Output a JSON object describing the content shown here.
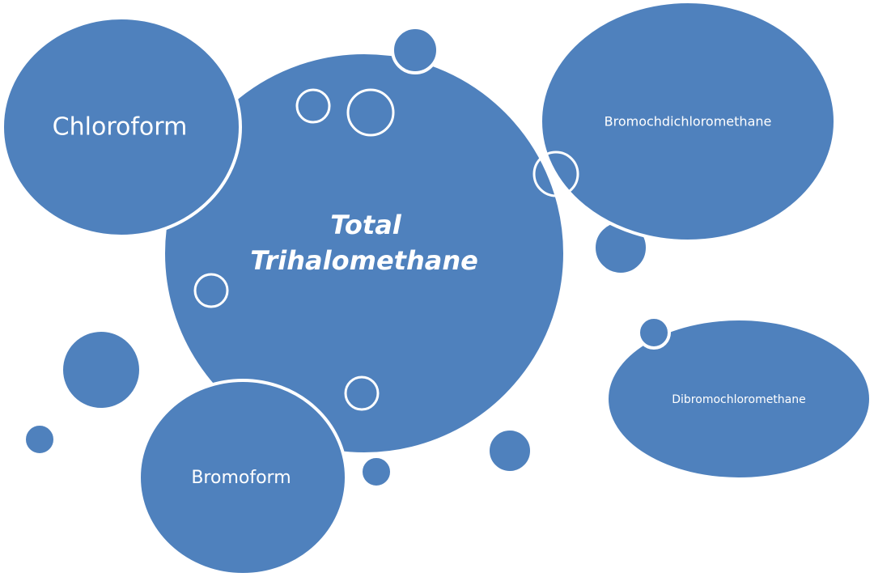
{
  "colors": {
    "bubble_fill": "#4f81bd",
    "outline": "#ffffff",
    "text": "#ffffff"
  },
  "center": {
    "line1": "Total",
    "line2": "Trihalomethane"
  },
  "bubbles": {
    "chloroform": "Chloroform",
    "bromodichloromethane": "Bromochdichloromethane",
    "dibromochloromethane": "Dibromochloromethane",
    "bromoform": "Bromoform"
  }
}
